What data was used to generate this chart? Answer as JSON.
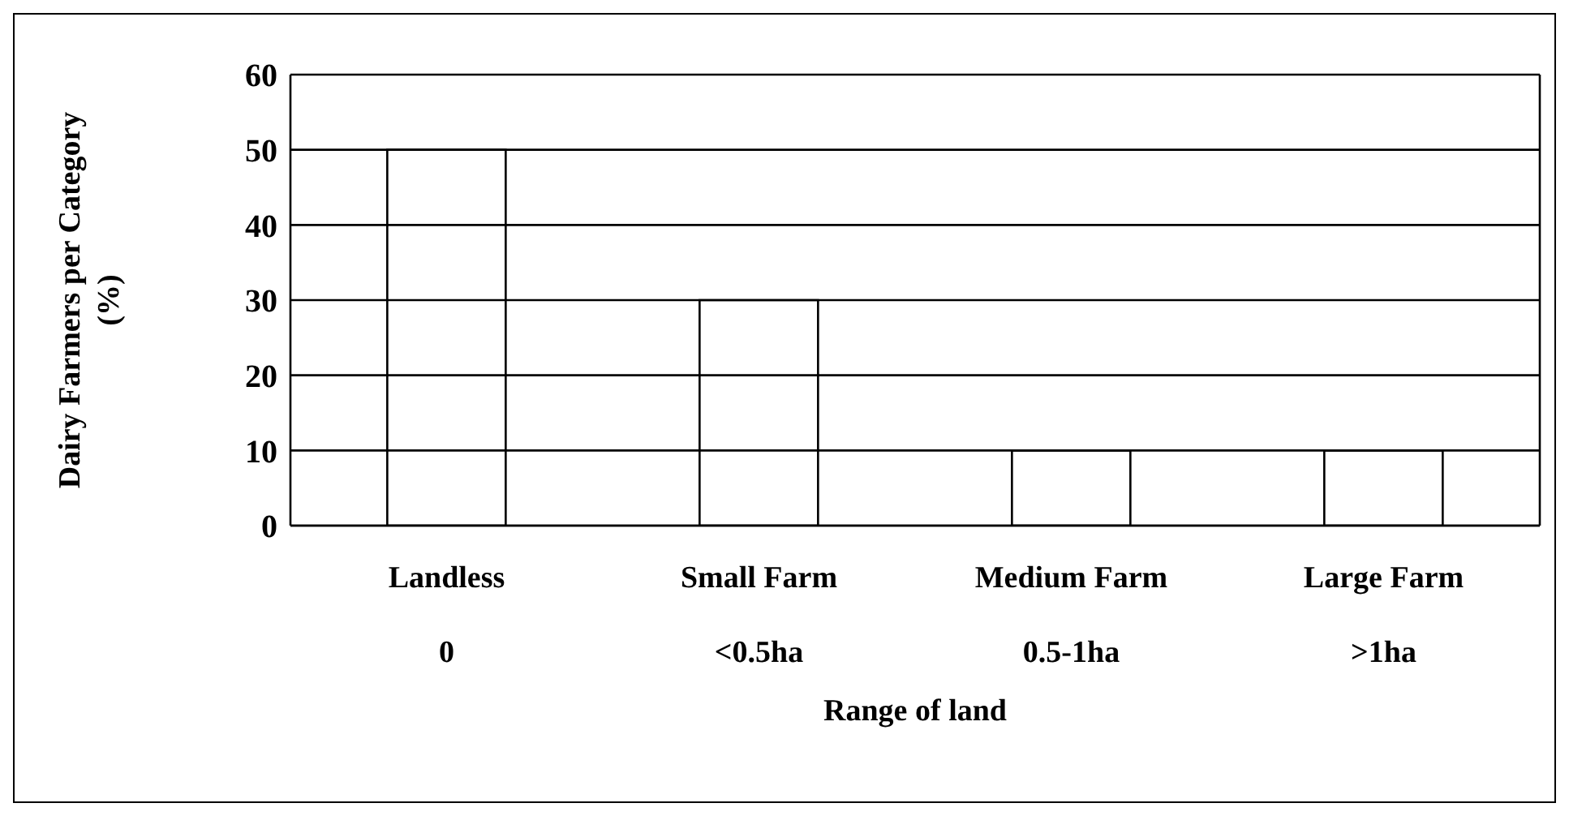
{
  "chart_data": {
    "type": "bar",
    "xlabel": "Range of land",
    "ylabel": "Dairy Farmers per Category\n(%)",
    "categories": [
      "Landless\n0",
      "Small Farm\n<0.5ha",
      "Medium Farm\n0.5-1ha",
      "Large Farm\n>1ha"
    ],
    "values": [
      50,
      30,
      10,
      10
    ],
    "color": "#000000",
    "ylim": [
      0,
      60
    ],
    "yticks": [
      0,
      10,
      20,
      30,
      40,
      50,
      60
    ],
    "grid": "y"
  }
}
